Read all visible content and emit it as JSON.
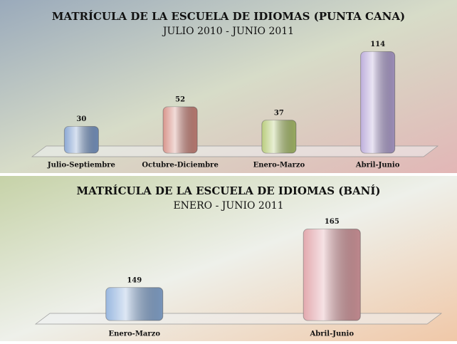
{
  "chart_data": [
    {
      "type": "bar",
      "title": "MATRÍCULA DE LA ESCUELA DE IDIOMAS (PUNTA CANA)",
      "subtitle": "JULIO 2010 - JUNIO 2011",
      "categories": [
        "Julio-Septiembre",
        "Octubre-Diciembre",
        "Enero-Marzo",
        "Abril-Junio"
      ],
      "values": [
        30,
        52,
        37,
        114
      ],
      "colors": [
        "#7f9fcf",
        "#d48a80",
        "#b2c870",
        "#b7a6d8"
      ],
      "ylim": [
        0,
        140
      ]
    },
    {
      "type": "bar",
      "title": "MATRÍCULA DE LA ESCUELA DE IDIOMAS (BANÍ)",
      "subtitle": "ENERO - JUNIO 2011",
      "categories": [
        "Enero-Marzo",
        "Abril-Junio"
      ],
      "values": [
        149,
        165
      ],
      "colors": [
        "#8eb0dc",
        "#e0a0a6"
      ],
      "ylim": [
        140,
        170
      ]
    }
  ]
}
